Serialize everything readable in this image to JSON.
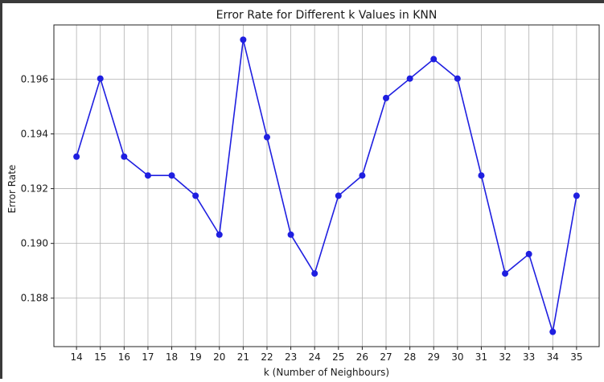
{
  "chart_data": {
    "type": "line",
    "title": "Error Rate for Different k Values in KNN",
    "xlabel": "k (Number of Neighbours)",
    "ylabel": "Error Rate",
    "x": [
      14,
      15,
      16,
      17,
      18,
      19,
      20,
      21,
      22,
      23,
      24,
      25,
      26,
      27,
      28,
      29,
      30,
      31,
      32,
      33,
      34,
      35
    ],
    "series": [
      {
        "values": [
          0.19317,
          0.19602,
          0.19317,
          0.19248,
          0.19248,
          0.19174,
          0.19032,
          0.19744,
          0.19388,
          0.19032,
          0.1889,
          0.19174,
          0.19248,
          0.19531,
          0.19602,
          0.19673,
          0.19602,
          0.19248,
          0.1889,
          0.18961,
          0.18677,
          0.19174
        ],
        "color": "#1f1fe0"
      }
    ],
    "xticks": [
      "14",
      "15",
      "16",
      "17",
      "18",
      "19",
      "20",
      "21",
      "22",
      "23",
      "24",
      "25",
      "26",
      "27",
      "28",
      "29",
      "30",
      "31",
      "32",
      "33",
      "34",
      "35"
    ],
    "yticks": [
      "0.188",
      "0.190",
      "0.192",
      "0.194",
      "0.196"
    ],
    "ytick_values": [
      0.188,
      0.19,
      0.192,
      0.194,
      0.196
    ],
    "xlim": [
      13.05,
      35.95
    ],
    "ylim": [
      0.18623,
      0.19798
    ],
    "grid": true,
    "marker": "circle"
  }
}
